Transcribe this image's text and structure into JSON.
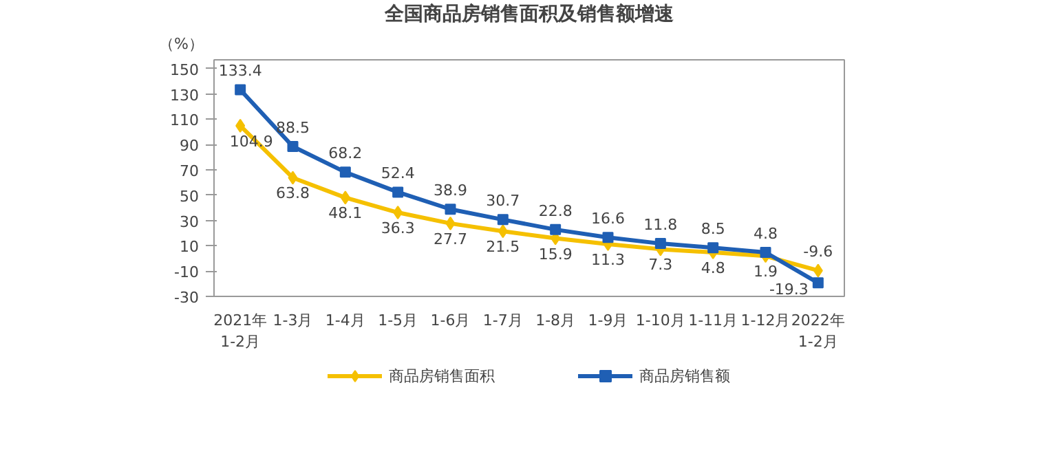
{
  "chart_data": {
    "type": "line",
    "title": "全国商品房销售面积及销售额增速",
    "ylabel": "（%）",
    "categories": [
      "2021年\n1-2月",
      "1-3月",
      "1-4月",
      "1-5月",
      "1-6月",
      "1-7月",
      "1-8月",
      "1-9月",
      "1-10月",
      "1-11月",
      "1-12月",
      "2022年\n1-2月"
    ],
    "series": [
      {
        "name": "商品房销售面积",
        "color": "#f5c000",
        "marker": "diamond",
        "values": [
          104.9,
          63.8,
          48.1,
          36.3,
          27.7,
          21.5,
          15.9,
          11.3,
          7.3,
          4.8,
          1.9,
          -9.6
        ]
      },
      {
        "name": "商品房销售额",
        "color": "#1f5fb4",
        "marker": "square",
        "values": [
          133.4,
          88.5,
          68.2,
          52.4,
          38.9,
          30.7,
          22.8,
          16.6,
          11.8,
          8.5,
          4.8,
          -19.3
        ]
      }
    ],
    "ylim": [
      -30,
      157
    ],
    "yticks": [
      -30,
      -10,
      10,
      30,
      50,
      70,
      90,
      110,
      130,
      150
    ],
    "data_labels": true,
    "legend": "bottom",
    "grid": false,
    "line_style": "solid"
  }
}
